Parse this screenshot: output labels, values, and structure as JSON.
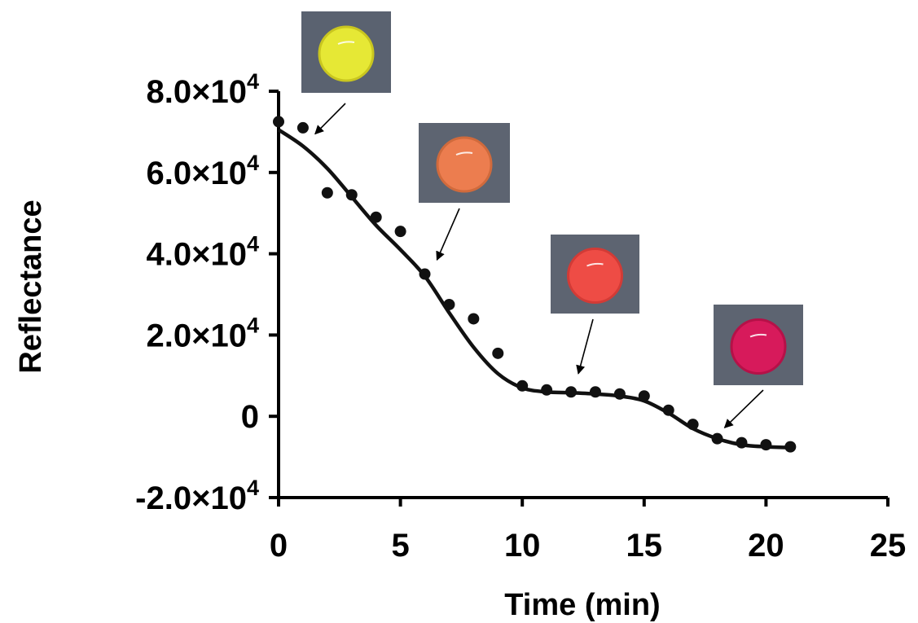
{
  "chart_data": {
    "type": "scatter",
    "title": "",
    "xlabel": "Time (min)",
    "ylabel": "Reflectance",
    "xlim": [
      0,
      25
    ],
    "ylim": [
      -20000,
      80000
    ],
    "grid": false,
    "legend": "none",
    "x_ticks": [
      {
        "value": 0,
        "label": "0"
      },
      {
        "value": 5,
        "label": "5"
      },
      {
        "value": 10,
        "label": "10"
      },
      {
        "value": 15,
        "label": "15"
      },
      {
        "value": 20,
        "label": "20"
      },
      {
        "value": 25,
        "label": "25"
      }
    ],
    "y_ticks": [
      {
        "value": -20000,
        "mantissa": "-2.0",
        "base": "×10",
        "exp": "4"
      },
      {
        "value": 0,
        "mantissa": "0",
        "base": "",
        "exp": ""
      },
      {
        "value": 20000,
        "mantissa": "2.0",
        "base": "×10",
        "exp": "4"
      },
      {
        "value": 40000,
        "mantissa": "4.0",
        "base": "×10",
        "exp": "4"
      },
      {
        "value": 60000,
        "mantissa": "6.0",
        "base": "×10",
        "exp": "4"
      },
      {
        "value": 80000,
        "mantissa": "8.0",
        "base": "×10",
        "exp": "4"
      }
    ],
    "series": [
      {
        "kind": "points",
        "color": "#111111",
        "x": [
          0,
          1,
          2,
          3,
          4,
          5,
          6,
          7,
          8,
          9,
          10,
          11,
          12,
          13,
          14,
          15,
          16,
          17,
          18,
          19,
          20,
          21
        ],
        "y": [
          72500,
          71000,
          55000,
          54500,
          49000,
          45500,
          35000,
          27500,
          24000,
          15500,
          7500,
          6500,
          6000,
          6000,
          5500,
          5000,
          1500,
          -2000,
          -5500,
          -6500,
          -7000,
          -7500
        ]
      },
      {
        "kind": "fit-line",
        "color": "#111111",
        "x": [
          0,
          1,
          2,
          3,
          4,
          5,
          6,
          7,
          8,
          9,
          10,
          11,
          12,
          13,
          14,
          15,
          16,
          17,
          18,
          19,
          20,
          21
        ],
        "y": [
          70500,
          66500,
          61000,
          54000,
          47000,
          41000,
          34500,
          25500,
          17000,
          10500,
          7000,
          6000,
          5800,
          5500,
          5000,
          3800,
          800,
          -3000,
          -5500,
          -7000,
          -7500,
          -7700
        ]
      }
    ],
    "annotations": [
      {
        "kind": "sample-photo",
        "swatch": "yellow-drop",
        "at_x": 1.5,
        "at_y": 69500,
        "bg": "#5a6270",
        "drop": "#e6e835",
        "drop_edge": "#c9c61f"
      },
      {
        "kind": "sample-photo",
        "swatch": "orange-drop",
        "at_x": 6.5,
        "at_y": 38500,
        "bg": "#5d6471",
        "drop": "#ec7d4f",
        "drop_edge": "#d06a3c"
      },
      {
        "kind": "sample-photo",
        "swatch": "red-drop",
        "at_x": 12.3,
        "at_y": 10500,
        "bg": "#5d6471",
        "drop": "#ee4c45",
        "drop_edge": "#d23b36"
      },
      {
        "kind": "sample-photo",
        "swatch": "magenta-drop",
        "at_x": 18.3,
        "at_y": -2800,
        "bg": "#5d6471",
        "drop": "#d71a5b",
        "drop_edge": "#b51148"
      }
    ]
  }
}
